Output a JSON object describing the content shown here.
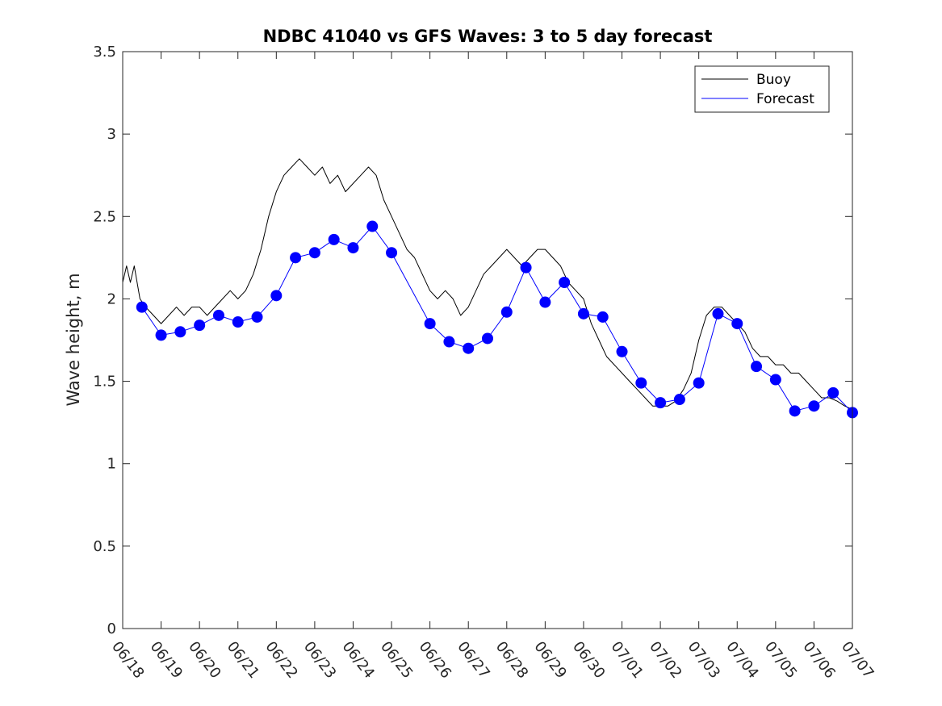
{
  "chart_data": {
    "type": "line",
    "title": "NDBC 41040 vs GFS Waves: 3 to 5 day forecast",
    "xlabel": "",
    "ylabel": "Wave height, m",
    "x_tick_labels": [
      "06/18",
      "06/19",
      "06/20",
      "06/21",
      "06/22",
      "06/23",
      "06/24",
      "06/25",
      "06/26",
      "06/27",
      "06/28",
      "06/29",
      "06/30",
      "07/01",
      "07/02",
      "07/03",
      "07/04",
      "07/05",
      "07/06",
      "07/07"
    ],
    "y_ticks": [
      0,
      0.5,
      1,
      1.5,
      2,
      2.5,
      3,
      3.5
    ],
    "y_tick_labels": [
      "0",
      "0.5",
      "1",
      "1.5",
      "2",
      "2.5",
      "3",
      "3.5"
    ],
    "xlim_days": [
      0,
      19
    ],
    "ylim": [
      0,
      3.5
    ],
    "legend": {
      "placement": "top-right",
      "entries": [
        {
          "label": "Buoy",
          "color": "#000000"
        },
        {
          "label": "Forecast",
          "color": "#0000ff"
        }
      ]
    },
    "series": [
      {
        "name": "Buoy",
        "color": "#000000",
        "points": [
          [
            0.0,
            2.1
          ],
          [
            0.1,
            2.2
          ],
          [
            0.2,
            2.1
          ],
          [
            0.3,
            2.2
          ],
          [
            0.45,
            2.0
          ],
          [
            0.6,
            1.95
          ],
          [
            0.8,
            1.9
          ],
          [
            1.0,
            1.85
          ],
          [
            1.2,
            1.9
          ],
          [
            1.4,
            1.95
          ],
          [
            1.6,
            1.9
          ],
          [
            1.8,
            1.95
          ],
          [
            2.0,
            1.95
          ],
          [
            2.2,
            1.9
          ],
          [
            2.4,
            1.95
          ],
          [
            2.6,
            2.0
          ],
          [
            2.8,
            2.05
          ],
          [
            3.0,
            2.0
          ],
          [
            3.2,
            2.05
          ],
          [
            3.4,
            2.15
          ],
          [
            3.6,
            2.3
          ],
          [
            3.8,
            2.5
          ],
          [
            4.0,
            2.65
          ],
          [
            4.2,
            2.75
          ],
          [
            4.4,
            2.8
          ],
          [
            4.6,
            2.85
          ],
          [
            4.8,
            2.8
          ],
          [
            5.0,
            2.75
          ],
          [
            5.2,
            2.8
          ],
          [
            5.4,
            2.7
          ],
          [
            5.6,
            2.75
          ],
          [
            5.8,
            2.65
          ],
          [
            6.0,
            2.7
          ],
          [
            6.2,
            2.75
          ],
          [
            6.4,
            2.8
          ],
          [
            6.6,
            2.75
          ],
          [
            6.8,
            2.6
          ],
          [
            7.0,
            2.5
          ],
          [
            7.2,
            2.4
          ],
          [
            7.4,
            2.3
          ],
          [
            7.6,
            2.25
          ],
          [
            7.8,
            2.15
          ],
          [
            8.0,
            2.05
          ],
          [
            8.2,
            2.0
          ],
          [
            8.4,
            2.05
          ],
          [
            8.6,
            2.0
          ],
          [
            8.8,
            1.9
          ],
          [
            9.0,
            1.95
          ],
          [
            9.2,
            2.05
          ],
          [
            9.4,
            2.15
          ],
          [
            9.6,
            2.2
          ],
          [
            9.8,
            2.25
          ],
          [
            10.0,
            2.3
          ],
          [
            10.2,
            2.25
          ],
          [
            10.4,
            2.2
          ],
          [
            10.6,
            2.25
          ],
          [
            10.8,
            2.3
          ],
          [
            11.0,
            2.3
          ],
          [
            11.2,
            2.25
          ],
          [
            11.4,
            2.2
          ],
          [
            11.6,
            2.1
          ],
          [
            11.8,
            2.05
          ],
          [
            12.0,
            2.0
          ],
          [
            12.2,
            1.85
          ],
          [
            12.4,
            1.75
          ],
          [
            12.6,
            1.65
          ],
          [
            12.8,
            1.6
          ],
          [
            13.0,
            1.55
          ],
          [
            13.2,
            1.5
          ],
          [
            13.4,
            1.45
          ],
          [
            13.6,
            1.4
          ],
          [
            13.8,
            1.35
          ],
          [
            14.0,
            1.35
          ],
          [
            14.2,
            1.35
          ],
          [
            14.4,
            1.38
          ],
          [
            14.6,
            1.45
          ],
          [
            14.8,
            1.55
          ],
          [
            15.0,
            1.75
          ],
          [
            15.2,
            1.9
          ],
          [
            15.4,
            1.95
          ],
          [
            15.6,
            1.95
          ],
          [
            15.8,
            1.9
          ],
          [
            16.0,
            1.85
          ],
          [
            16.2,
            1.8
          ],
          [
            16.4,
            1.7
          ],
          [
            16.6,
            1.65
          ],
          [
            16.8,
            1.65
          ],
          [
            17.0,
            1.6
          ],
          [
            17.2,
            1.6
          ],
          [
            17.4,
            1.55
          ],
          [
            17.6,
            1.55
          ],
          [
            17.8,
            1.5
          ],
          [
            18.0,
            1.45
          ],
          [
            18.2,
            1.4
          ],
          [
            18.4,
            1.4
          ],
          [
            18.6,
            1.38
          ],
          [
            18.8,
            1.35
          ],
          [
            19.0,
            1.33
          ]
        ]
      },
      {
        "name": "Forecast",
        "color": "#0000ff",
        "points": [
          [
            0.5,
            1.95
          ],
          [
            1.0,
            1.78
          ],
          [
            1.5,
            1.8
          ],
          [
            2.0,
            1.84
          ],
          [
            2.5,
            1.9
          ],
          [
            3.0,
            1.86
          ],
          [
            3.5,
            1.89
          ],
          [
            4.0,
            2.02
          ],
          [
            4.5,
            2.25
          ],
          [
            5.0,
            2.28
          ],
          [
            5.5,
            2.36
          ],
          [
            6.0,
            2.31
          ],
          [
            6.5,
            2.44
          ],
          [
            7.0,
            2.28
          ],
          [
            8.0,
            1.85
          ],
          [
            8.5,
            1.74
          ],
          [
            9.0,
            1.7
          ],
          [
            9.5,
            1.76
          ],
          [
            10.0,
            1.92
          ],
          [
            10.5,
            2.19
          ],
          [
            11.0,
            1.98
          ],
          [
            11.5,
            2.1
          ],
          [
            12.0,
            1.91
          ],
          [
            12.5,
            1.89
          ],
          [
            13.0,
            1.68
          ],
          [
            13.5,
            1.49
          ],
          [
            14.0,
            1.37
          ],
          [
            14.5,
            1.39
          ],
          [
            15.0,
            1.49
          ],
          [
            15.5,
            1.91
          ],
          [
            16.0,
            1.85
          ],
          [
            16.5,
            1.59
          ],
          [
            17.0,
            1.51
          ],
          [
            17.5,
            1.32
          ],
          [
            18.0,
            1.35
          ],
          [
            18.5,
            1.43
          ],
          [
            19.0,
            1.31
          ]
        ]
      }
    ]
  }
}
